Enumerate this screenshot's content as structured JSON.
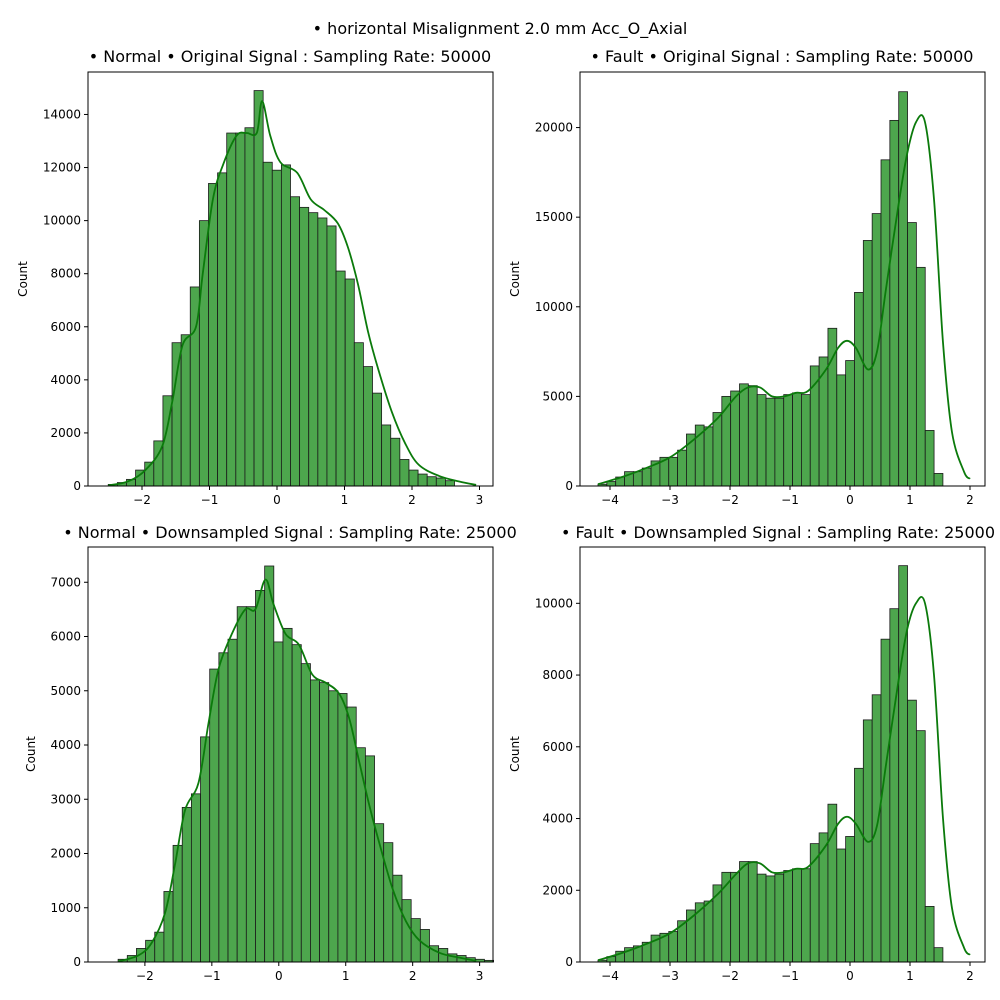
{
  "suptitle": "• horizontal Misalignment 2.0 mm Acc_O_Axial",
  "colors": {
    "bar_fill": "#4da64d",
    "bar_edge": "#1a1a1a",
    "kde_line": "#0b7a0b"
  },
  "chart_data": [
    {
      "type": "bar",
      "title": "• Normal • Original Signal : Sampling Rate: 50000",
      "xlabel": "",
      "ylabel": "Count",
      "xlim": [
        -2.8,
        3.2
      ],
      "ylim": [
        0,
        15600
      ],
      "grid": false,
      "xticks": [
        -2,
        -1,
        0,
        1,
        2,
        3
      ],
      "yticks": [
        0,
        2000,
        4000,
        6000,
        8000,
        10000,
        12000,
        14000
      ],
      "bin_start": -2.5,
      "bin_width": 0.135,
      "values": [
        60,
        130,
        250,
        600,
        900,
        1700,
        3400,
        5400,
        5700,
        7500,
        10000,
        11400,
        11800,
        13300,
        13300,
        13500,
        14900,
        12200,
        11900,
        12100,
        10900,
        10500,
        10300,
        10100,
        9800,
        8100,
        7800,
        5400,
        4500,
        3500,
        2300,
        1800,
        1000,
        600,
        450,
        350,
        300,
        200
      ],
      "kde": [
        [
          -2.5,
          20
        ],
        [
          -2.2,
          180
        ],
        [
          -1.95,
          600
        ],
        [
          -1.7,
          1500
        ],
        [
          -1.55,
          3200
        ],
        [
          -1.4,
          5300
        ],
        [
          -1.2,
          6000
        ],
        [
          -1.1,
          8000
        ],
        [
          -0.95,
          10800
        ],
        [
          -0.8,
          12100
        ],
        [
          -0.6,
          13200
        ],
        [
          -0.45,
          13300
        ],
        [
          -0.3,
          13300
        ],
        [
          -0.22,
          14500
        ],
        [
          -0.1,
          13200
        ],
        [
          0.05,
          12200
        ],
        [
          0.3,
          11800
        ],
        [
          0.5,
          10800
        ],
        [
          0.7,
          10400
        ],
        [
          0.9,
          9900
        ],
        [
          1.05,
          9000
        ],
        [
          1.2,
          7600
        ],
        [
          1.35,
          5800
        ],
        [
          1.5,
          4400
        ],
        [
          1.7,
          2800
        ],
        [
          1.9,
          1600
        ],
        [
          2.1,
          800
        ],
        [
          2.4,
          380
        ],
        [
          2.7,
          170
        ],
        [
          2.95,
          40
        ]
      ]
    },
    {
      "type": "bar",
      "title": "• Fault • Original Signal : Sampling Rate: 50000",
      "xlabel": "",
      "ylabel": "Count",
      "xlim": [
        -4.5,
        2.25
      ],
      "ylim": [
        0,
        23100
      ],
      "grid": false,
      "xticks": [
        -4,
        -3,
        -2,
        -1,
        0,
        1,
        2
      ],
      "yticks": [
        0,
        5000,
        10000,
        15000,
        20000
      ],
      "bin_start": -4.2,
      "bin_width": 0.1474,
      "values": [
        100,
        250,
        500,
        800,
        800,
        1000,
        1400,
        1600,
        1600,
        2000,
        2900,
        3400,
        3300,
        4100,
        5000,
        5300,
        5700,
        5600,
        5100,
        4900,
        4900,
        5100,
        5200,
        5100,
        6700,
        7200,
        8800,
        6200,
        7000,
        10800,
        13700,
        15200,
        18200,
        20400,
        22000,
        14700,
        12200,
        3100,
        700
      ],
      "kde": [
        [
          -4.2,
          100
        ],
        [
          -3.8,
          500
        ],
        [
          -3.4,
          1000
        ],
        [
          -3.0,
          1600
        ],
        [
          -2.6,
          2600
        ],
        [
          -2.2,
          3800
        ],
        [
          -1.9,
          5000
        ],
        [
          -1.7,
          5500
        ],
        [
          -1.5,
          5500
        ],
        [
          -1.3,
          5000
        ],
        [
          -1.1,
          5000
        ],
        [
          -0.9,
          5200
        ],
        [
          -0.7,
          5300
        ],
        [
          -0.4,
          6500
        ],
        [
          -0.2,
          7700
        ],
        [
          -0.05,
          8100
        ],
        [
          0.1,
          7700
        ],
        [
          0.3,
          6500
        ],
        [
          0.45,
          7500
        ],
        [
          0.6,
          11000
        ],
        [
          0.8,
          15500
        ],
        [
          0.95,
          18500
        ],
        [
          1.1,
          20300
        ],
        [
          1.25,
          20300
        ],
        [
          1.4,
          16000
        ],
        [
          1.55,
          8000
        ],
        [
          1.7,
          3000
        ],
        [
          1.9,
          800
        ],
        [
          2.0,
          400
        ]
      ]
    },
    {
      "type": "bar",
      "title": "• Normal • Downsampled Signal : Sampling Rate: 25000",
      "xlabel": "",
      "ylabel": "Count",
      "xlim": [
        -2.85,
        3.2
      ],
      "ylim": [
        0,
        7650
      ],
      "grid": false,
      "xticks": [
        -2,
        -1,
        0,
        1,
        2,
        3
      ],
      "yticks": [
        0,
        1000,
        2000,
        3000,
        4000,
        5000,
        6000,
        7000
      ],
      "bin_start": -2.4,
      "bin_width": 0.1368,
      "values": [
        50,
        120,
        250,
        400,
        550,
        1300,
        2150,
        2850,
        3100,
        4150,
        5400,
        5700,
        5950,
        6550,
        6550,
        6850,
        7300,
        5900,
        6150,
        5850,
        5500,
        5200,
        5150,
        5000,
        4950,
        4700,
        3950,
        3800,
        2550,
        2200,
        1600,
        1150,
        800,
        600,
        300,
        250,
        150,
        120,
        80,
        50,
        30
      ],
      "kde": [
        [
          -2.4,
          10
        ],
        [
          -2.1,
          120
        ],
        [
          -1.9,
          350
        ],
        [
          -1.7,
          900
        ],
        [
          -1.55,
          1800
        ],
        [
          -1.4,
          2800
        ],
        [
          -1.2,
          3300
        ],
        [
          -1.05,
          4400
        ],
        [
          -0.9,
          5400
        ],
        [
          -0.7,
          6050
        ],
        [
          -0.5,
          6500
        ],
        [
          -0.35,
          6500
        ],
        [
          -0.2,
          7050
        ],
        [
          -0.08,
          6600
        ],
        [
          0.1,
          6050
        ],
        [
          0.3,
          5850
        ],
        [
          0.5,
          5300
        ],
        [
          0.7,
          5150
        ],
        [
          0.9,
          4950
        ],
        [
          1.05,
          4500
        ],
        [
          1.2,
          3700
        ],
        [
          1.35,
          2900
        ],
        [
          1.5,
          2200
        ],
        [
          1.7,
          1350
        ],
        [
          1.9,
          750
        ],
        [
          2.1,
          400
        ],
        [
          2.4,
          170
        ],
        [
          2.7,
          80
        ],
        [
          2.95,
          20
        ]
      ]
    },
    {
      "type": "bar",
      "title": "• Fault • Downsampled Signal : Sampling Rate: 25000",
      "xlabel": "",
      "ylabel": "Count",
      "xlim": [
        -4.5,
        2.25
      ],
      "ylim": [
        0,
        11570
      ],
      "grid": false,
      "xticks": [
        -4,
        -3,
        -2,
        -1,
        0,
        1,
        2
      ],
      "yticks": [
        0,
        2000,
        4000,
        6000,
        8000,
        10000
      ],
      "bin_start": -4.2,
      "bin_width": 0.1474,
      "values": [
        50,
        150,
        300,
        400,
        450,
        550,
        750,
        800,
        850,
        1150,
        1450,
        1650,
        1700,
        2150,
        2500,
        2500,
        2800,
        2800,
        2450,
        2400,
        2450,
        2550,
        2600,
        2600,
        3300,
        3600,
        4400,
        3150,
        3500,
        5400,
        6750,
        7450,
        9000,
        9850,
        11050,
        7300,
        6450,
        1550,
        400
      ],
      "kde": [
        [
          -4.2,
          50
        ],
        [
          -3.8,
          250
        ],
        [
          -3.4,
          500
        ],
        [
          -3.0,
          800
        ],
        [
          -2.6,
          1300
        ],
        [
          -2.2,
          1900
        ],
        [
          -1.9,
          2450
        ],
        [
          -1.7,
          2750
        ],
        [
          -1.5,
          2750
        ],
        [
          -1.3,
          2500
        ],
        [
          -1.1,
          2500
        ],
        [
          -0.9,
          2600
        ],
        [
          -0.7,
          2650
        ],
        [
          -0.4,
          3250
        ],
        [
          -0.2,
          3850
        ],
        [
          -0.05,
          4050
        ],
        [
          0.1,
          3850
        ],
        [
          0.3,
          3350
        ],
        [
          0.45,
          3800
        ],
        [
          0.6,
          5500
        ],
        [
          0.8,
          7750
        ],
        [
          0.95,
          9250
        ],
        [
          1.1,
          10000
        ],
        [
          1.25,
          10000
        ],
        [
          1.4,
          8000
        ],
        [
          1.55,
          4000
        ],
        [
          1.7,
          1500
        ],
        [
          1.9,
          400
        ],
        [
          2.0,
          200
        ]
      ]
    }
  ]
}
